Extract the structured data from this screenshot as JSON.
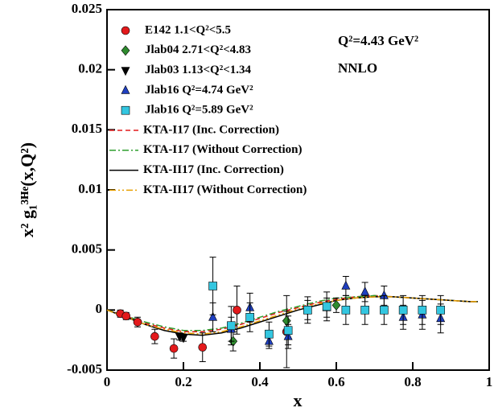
{
  "chart_data": {
    "type": "scatter",
    "x_label": "x",
    "y_label": "x² g₁³ᴴᵉ(x,Q²)",
    "annotations": [
      "Q²=4.43 GeV²",
      "NNLO"
    ],
    "xlim": [
      0,
      1
    ],
    "xticks": [
      0,
      0.2,
      0.4,
      0.6,
      0.8,
      1
    ],
    "ylim": [
      -0.005,
      0.025
    ],
    "yticks": [
      -0.005,
      0,
      0.005,
      0.01,
      0.015,
      0.02,
      0.025
    ],
    "legend": "upper left",
    "series": [
      {
        "name": "E142 1.1<Q²<5.5",
        "color": "#e31a1c",
        "marker": "circle",
        "x": [
          0.035,
          0.05,
          0.08,
          0.125,
          0.175,
          0.25,
          0.34,
          0.47
        ],
        "values": [
          -0.0003,
          -0.0005,
          -0.001,
          -0.0022,
          -0.0032,
          -0.0031,
          0.0,
          -0.0018
        ],
        "errors": [
          0.0003,
          0.0003,
          0.0004,
          0.0006,
          0.0008,
          0.0012,
          0.002,
          0.003
        ]
      },
      {
        "name": "Jlab04 2.71<Q²<4.83",
        "color": "#2e8b2e",
        "marker": "diamond",
        "x": [
          0.33,
          0.47,
          0.6
        ],
        "values": [
          -0.0026,
          -0.0009,
          0.0004
        ],
        "errors": [
          0.0008,
          0.0008,
          0.0006
        ]
      },
      {
        "name": "Jlab03 1.13<Q²<1.34",
        "color": "#000000",
        "marker": "triangle-down",
        "x": [
          0.19,
          0.2
        ],
        "values": [
          -0.0022,
          -0.0023
        ],
        "errors": [
          0.0003,
          0.0003
        ]
      },
      {
        "name": "Jlab16 Q²=4.74 GeV²",
        "color": "#1f3fbf",
        "marker": "triangle-up",
        "x": [
          0.277,
          0.325,
          0.374,
          0.424,
          0.474,
          0.525,
          0.575,
          0.625,
          0.675,
          0.725,
          0.775,
          0.825,
          0.873
        ],
        "values": [
          -0.0006,
          -0.0016,
          0.0002,
          -0.0026,
          -0.0022,
          0.0,
          0.0002,
          0.002,
          0.0015,
          0.0012,
          -0.0006,
          -0.0004,
          -0.0007
        ],
        "errors": [
          0.0012,
          0.001,
          0.0012,
          0.0006,
          0.001,
          0.0008,
          0.0008,
          0.0008,
          0.0008,
          0.0008,
          0.001,
          0.0012,
          0.0012
        ]
      },
      {
        "name": "Jlab16 Q²=5.89 GeV²",
        "color": "#33c6e0",
        "marker": "square",
        "x": [
          0.277,
          0.325,
          0.374,
          0.424,
          0.474,
          0.525,
          0.575,
          0.625,
          0.675,
          0.725,
          0.775,
          0.825,
          0.873
        ],
        "values": [
          0.002,
          -0.0013,
          -0.0006,
          -0.002,
          -0.0017,
          0.0,
          0.0003,
          0.0,
          0.0,
          0.0,
          0.0,
          0.0,
          0.0
        ],
        "errors": [
          0.0024,
          0.0016,
          0.0012,
          0.001,
          0.0012,
          0.0011,
          0.0012,
          0.0012,
          0.0012,
          0.0012,
          0.0012,
          0.0012,
          0.0012
        ]
      },
      {
        "name": "KTA-I17 (Inc. Correction)",
        "color": "#e31a1c",
        "dash": "6,4",
        "x": [
          0,
          0.05,
          0.1,
          0.15,
          0.2,
          0.25,
          0.3,
          0.35,
          0.4,
          0.45,
          0.5,
          0.55,
          0.6,
          0.65,
          0.7,
          0.75,
          0.8,
          0.85,
          0.9,
          0.95,
          0.97
        ],
        "values": [
          0,
          -0.0005,
          -0.0011,
          -0.0015,
          -0.0018,
          -0.0018,
          -0.0016,
          -0.0012,
          -0.0007,
          -0.0002,
          0.0002,
          0.0006,
          0.0009,
          0.0011,
          0.0012,
          0.0011,
          0.001,
          0.0009,
          0.0008,
          0.0007,
          0.0007
        ]
      },
      {
        "name": "KTA-I17 (Without Correction)",
        "color": "#2e9e2e",
        "dash": "8,3,2,3",
        "x": [
          0,
          0.05,
          0.1,
          0.15,
          0.2,
          0.25,
          0.3,
          0.35,
          0.4,
          0.45,
          0.5,
          0.55,
          0.6,
          0.65,
          0.7,
          0.75,
          0.8,
          0.85,
          0.9,
          0.95,
          0.97
        ],
        "values": [
          0,
          -0.0005,
          -0.001,
          -0.0014,
          -0.0017,
          -0.0017,
          -0.0015,
          -0.0011,
          -0.0006,
          -0.0001,
          0.0003,
          0.0007,
          0.001,
          0.0011,
          0.0012,
          0.0011,
          0.001,
          0.0009,
          0.0008,
          0.0007,
          0.0007
        ]
      },
      {
        "name": "KTA-II17 (Inc. Correction)",
        "color": "#000000",
        "dash": "none",
        "x": [
          0,
          0.05,
          0.1,
          0.15,
          0.2,
          0.25,
          0.3,
          0.35,
          0.4,
          0.45,
          0.5,
          0.55,
          0.6,
          0.65,
          0.7,
          0.75,
          0.8,
          0.85,
          0.9,
          0.95,
          0.97
        ],
        "values": [
          0,
          -0.0006,
          -0.0012,
          -0.0017,
          -0.002,
          -0.0021,
          -0.0019,
          -0.0015,
          -0.001,
          -0.0005,
          0.0,
          0.0004,
          0.0008,
          0.001,
          0.0011,
          0.0011,
          0.001,
          0.0009,
          0.0008,
          0.0007,
          0.0007
        ]
      },
      {
        "name": "KTA-II17 (Without Correction)",
        "color": "#e8a000",
        "dash": "8,3,2,3,2,3",
        "x": [
          0,
          0.05,
          0.1,
          0.15,
          0.2,
          0.25,
          0.3,
          0.35,
          0.4,
          0.45,
          0.5,
          0.55,
          0.6,
          0.65,
          0.7,
          0.75,
          0.8,
          0.85,
          0.9,
          0.95,
          0.97
        ],
        "values": [
          0,
          -0.0006,
          -0.0012,
          -0.0016,
          -0.0019,
          -0.002,
          -0.0018,
          -0.0014,
          -0.0009,
          -0.0004,
          0.0001,
          0.0005,
          0.0008,
          0.001,
          0.0011,
          0.0011,
          0.001,
          0.0009,
          0.0008,
          0.0007,
          0.0007
        ]
      }
    ]
  }
}
